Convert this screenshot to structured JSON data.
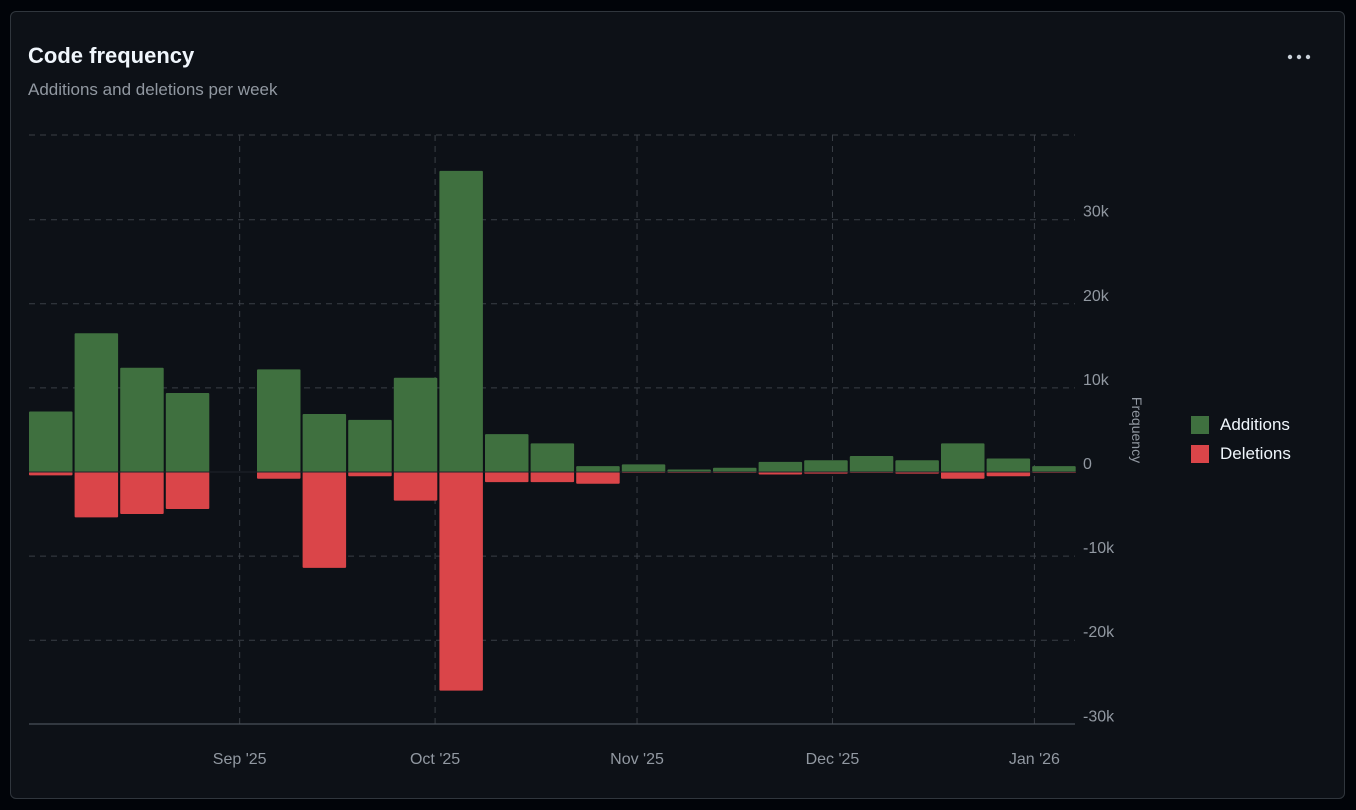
{
  "card": {
    "title": "Code frequency",
    "subtitle": "Additions and deletions per week",
    "menu_icon": "kebab-horizontal-icon"
  },
  "colors": {
    "additions": "#3f703f",
    "deletions": "#da4549",
    "grid": "#3a3f46",
    "axis_text": "#9198a1",
    "baseline": "#4a5058"
  },
  "legend": {
    "placement": "right",
    "items": [
      {
        "label": "Additions",
        "color": "#3f703f"
      },
      {
        "label": "Deletions",
        "color": "#da4549"
      }
    ]
  },
  "chart_data": {
    "type": "bar",
    "title": "Code frequency",
    "subtitle": "Additions and deletions per week",
    "xlabel": "",
    "ylabel": "Frequency",
    "ylim": [
      -30000,
      40000
    ],
    "y_ticks": [
      30000,
      20000,
      10000,
      0,
      -10000,
      -20000,
      -30000
    ],
    "y_tick_labels": [
      "30k",
      "20k",
      "10k",
      "0",
      "-10k",
      "-20k",
      "-30k"
    ],
    "x_tick_labels": [
      "Sep '25",
      "Oct '25",
      "Nov '25",
      "Dec '25",
      "Jan '26"
    ],
    "x_tick_dates": [
      "2025-09-01",
      "2025-10-01",
      "2025-11-01",
      "2025-12-01",
      "2026-01-01"
    ],
    "grid": true,
    "categories": [
      "2025-08-03",
      "2025-08-10",
      "2025-08-17",
      "2025-08-24",
      "2025-08-31",
      "2025-09-07",
      "2025-09-14",
      "2025-09-21",
      "2025-09-28",
      "2025-10-05",
      "2025-10-12",
      "2025-10-19",
      "2025-10-26",
      "2025-11-02",
      "2025-11-09",
      "2025-11-16",
      "2025-11-23",
      "2025-11-30",
      "2025-12-07",
      "2025-12-14",
      "2025-12-21",
      "2025-12-28",
      "2026-01-04",
      "2026-01-11"
    ],
    "series": [
      {
        "name": "Additions",
        "values": [
          7200,
          16500,
          12400,
          9400,
          0,
          12200,
          6900,
          6200,
          11200,
          35800,
          4500,
          3400,
          700,
          900,
          300,
          500,
          1200,
          1400,
          1900,
          1400,
          3400,
          1600,
          700,
          0
        ]
      },
      {
        "name": "Deletions",
        "values": [
          -400,
          -5400,
          -5000,
          -4400,
          0,
          -800,
          -11400,
          -500,
          -3400,
          -26000,
          -1200,
          -1200,
          -1400,
          -100,
          -100,
          -100,
          -300,
          -200,
          -100,
          -200,
          -800,
          -500,
          -100,
          0
        ]
      }
    ]
  }
}
